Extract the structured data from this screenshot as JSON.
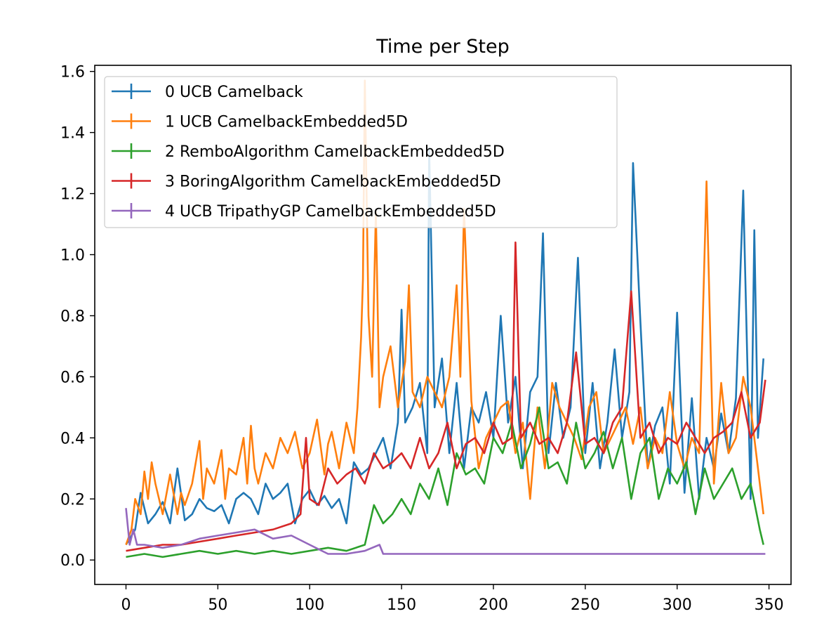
{
  "chart_data": {
    "type": "line",
    "title": "Time per Step",
    "xlabel": "",
    "ylabel": "",
    "xlim": [
      -17,
      362
    ],
    "ylim": [
      -0.08,
      1.62
    ],
    "xticks": [
      0,
      50,
      100,
      150,
      200,
      250,
      300,
      350
    ],
    "yticks": [
      0.0,
      0.2,
      0.4,
      0.6,
      0.8,
      1.0,
      1.2,
      1.4,
      1.6
    ],
    "xtick_labels": [
      "0",
      "50",
      "100",
      "150",
      "200",
      "250",
      "300",
      "350"
    ],
    "ytick_labels": [
      "0.0",
      "0.2",
      "0.4",
      "0.6",
      "0.8",
      "1.0",
      "1.2",
      "1.4",
      "1.6"
    ],
    "grid": false,
    "legend_position": "upper-left",
    "series": [
      {
        "name": "0 UCB   Camelback",
        "color": "#1f77b4",
        "x": [
          0,
          5,
          8,
          12,
          16,
          20,
          24,
          28,
          32,
          36,
          40,
          44,
          48,
          52,
          56,
          60,
          64,
          68,
          72,
          76,
          80,
          84,
          88,
          92,
          96,
          100,
          104,
          108,
          112,
          116,
          120,
          124,
          128,
          132,
          136,
          140,
          144,
          148,
          150,
          152,
          156,
          160,
          164,
          165,
          168,
          172,
          176,
          180,
          184,
          188,
          192,
          196,
          200,
          204,
          208,
          212,
          216,
          220,
          224,
          227,
          230,
          234,
          238,
          242,
          246,
          250,
          254,
          258,
          262,
          266,
          270,
          274,
          276,
          280,
          284,
          288,
          292,
          296,
          300,
          304,
          308,
          312,
          316,
          320,
          324,
          328,
          332,
          336,
          340,
          342,
          344,
          347
        ],
        "y": [
          0.05,
          0.1,
          0.22,
          0.12,
          0.15,
          0.19,
          0.12,
          0.3,
          0.13,
          0.15,
          0.2,
          0.17,
          0.16,
          0.18,
          0.12,
          0.2,
          0.22,
          0.2,
          0.15,
          0.25,
          0.2,
          0.22,
          0.25,
          0.12,
          0.2,
          0.23,
          0.18,
          0.21,
          0.17,
          0.2,
          0.12,
          0.32,
          0.28,
          0.3,
          0.35,
          0.4,
          0.3,
          0.45,
          0.82,
          0.45,
          0.5,
          0.58,
          0.35,
          1.35,
          0.5,
          0.66,
          0.35,
          0.58,
          0.3,
          0.5,
          0.45,
          0.55,
          0.4,
          0.8,
          0.45,
          0.6,
          0.3,
          0.55,
          0.6,
          1.07,
          0.35,
          0.58,
          0.4,
          0.5,
          0.99,
          0.35,
          0.58,
          0.3,
          0.45,
          0.69,
          0.4,
          0.55,
          1.3,
          0.78,
          0.3,
          0.44,
          0.5,
          0.25,
          0.81,
          0.22,
          0.53,
          0.2,
          0.4,
          0.3,
          0.48,
          0.35,
          0.53,
          1.21,
          0.2,
          1.08,
          0.4,
          0.66
        ]
      },
      {
        "name": "1 UCB   CamelbackEmbedded5D",
        "color": "#ff7f0e",
        "x": [
          0,
          3,
          5,
          8,
          10,
          12,
          14,
          16,
          20,
          24,
          28,
          30,
          32,
          36,
          40,
          42,
          44,
          48,
          52,
          54,
          56,
          60,
          64,
          66,
          68,
          70,
          72,
          76,
          80,
          84,
          88,
          92,
          96,
          100,
          104,
          108,
          110,
          112,
          116,
          120,
          124,
          126,
          128,
          129,
          130,
          132,
          134,
          136,
          138,
          140,
          144,
          148,
          152,
          154,
          156,
          160,
          164,
          168,
          172,
          176,
          180,
          182,
          184,
          188,
          192,
          196,
          200,
          204,
          208,
          212,
          216,
          220,
          224,
          228,
          232,
          236,
          240,
          244,
          248,
          252,
          256,
          260,
          264,
          268,
          272,
          276,
          280,
          284,
          288,
          292,
          296,
          300,
          304,
          308,
          312,
          316,
          320,
          324,
          328,
          332,
          336,
          340,
          344,
          347
        ],
        "y": [
          0.05,
          0.1,
          0.2,
          0.15,
          0.29,
          0.2,
          0.32,
          0.25,
          0.15,
          0.28,
          0.15,
          0.22,
          0.18,
          0.25,
          0.39,
          0.2,
          0.3,
          0.25,
          0.36,
          0.2,
          0.3,
          0.28,
          0.4,
          0.25,
          0.44,
          0.3,
          0.25,
          0.35,
          0.3,
          0.4,
          0.35,
          0.42,
          0.3,
          0.35,
          0.46,
          0.28,
          0.38,
          0.42,
          0.3,
          0.45,
          0.35,
          0.5,
          0.73,
          0.92,
          1.57,
          0.8,
          0.6,
          1.14,
          0.5,
          0.6,
          0.7,
          0.5,
          0.65,
          0.9,
          0.55,
          0.5,
          0.6,
          0.55,
          0.5,
          0.6,
          0.9,
          0.6,
          1.15,
          0.52,
          0.3,
          0.4,
          0.45,
          0.5,
          0.52,
          0.35,
          0.45,
          0.2,
          0.5,
          0.3,
          0.58,
          0.5,
          0.45,
          0.4,
          0.33,
          0.5,
          0.55,
          0.35,
          0.4,
          0.45,
          0.5,
          0.38,
          0.5,
          0.3,
          0.4,
          0.35,
          0.55,
          0.38,
          0.3,
          0.4,
          0.35,
          1.24,
          0.25,
          0.58,
          0.35,
          0.4,
          0.6,
          0.5,
          0.3,
          0.15
        ]
      },
      {
        "name": "2 RemboAlgorithm   CamelbackEmbedded5D",
        "color": "#2ca02c",
        "x": [
          0,
          10,
          20,
          30,
          40,
          50,
          60,
          70,
          80,
          90,
          100,
          110,
          120,
          130,
          135,
          140,
          145,
          150,
          155,
          160,
          165,
          170,
          175,
          180,
          185,
          190,
          195,
          200,
          205,
          210,
          215,
          220,
          225,
          230,
          235,
          240,
          245,
          250,
          255,
          260,
          265,
          270,
          275,
          280,
          285,
          290,
          295,
          300,
          305,
          310,
          315,
          320,
          325,
          330,
          335,
          340,
          345,
          347
        ],
        "y": [
          0.01,
          0.02,
          0.01,
          0.02,
          0.03,
          0.02,
          0.03,
          0.02,
          0.03,
          0.02,
          0.03,
          0.04,
          0.03,
          0.05,
          0.18,
          0.12,
          0.15,
          0.2,
          0.15,
          0.25,
          0.2,
          0.3,
          0.18,
          0.35,
          0.28,
          0.3,
          0.25,
          0.4,
          0.35,
          0.45,
          0.3,
          0.38,
          0.5,
          0.3,
          0.32,
          0.25,
          0.45,
          0.3,
          0.35,
          0.42,
          0.3,
          0.4,
          0.2,
          0.35,
          0.4,
          0.2,
          0.3,
          0.25,
          0.32,
          0.15,
          0.3,
          0.2,
          0.25,
          0.3,
          0.2,
          0.25,
          0.1,
          0.05
        ]
      },
      {
        "name": "3 BoringAlgorithm   CamelbackEmbedded5D",
        "color": "#d62728",
        "x": [
          0,
          10,
          20,
          30,
          40,
          50,
          60,
          70,
          80,
          90,
          95,
          98,
          100,
          105,
          110,
          115,
          120,
          125,
          130,
          135,
          140,
          145,
          150,
          155,
          160,
          165,
          170,
          175,
          180,
          185,
          190,
          195,
          200,
          205,
          210,
          212,
          215,
          220,
          225,
          230,
          235,
          240,
          245,
          250,
          255,
          260,
          265,
          270,
          275,
          280,
          285,
          290,
          295,
          300,
          305,
          310,
          315,
          320,
          325,
          330,
          335,
          340,
          345,
          348
        ],
        "y": [
          0.03,
          0.04,
          0.05,
          0.05,
          0.06,
          0.07,
          0.08,
          0.09,
          0.1,
          0.12,
          0.15,
          0.4,
          0.2,
          0.18,
          0.3,
          0.25,
          0.28,
          0.3,
          0.25,
          0.35,
          0.3,
          0.32,
          0.35,
          0.3,
          0.4,
          0.3,
          0.35,
          0.45,
          0.3,
          0.38,
          0.4,
          0.35,
          0.45,
          0.38,
          0.4,
          1.04,
          0.4,
          0.45,
          0.38,
          0.4,
          0.35,
          0.45,
          0.68,
          0.38,
          0.4,
          0.35,
          0.45,
          0.5,
          0.88,
          0.4,
          0.45,
          0.35,
          0.4,
          0.38,
          0.45,
          0.4,
          0.35,
          0.4,
          0.42,
          0.45,
          0.55,
          0.4,
          0.45,
          0.59
        ]
      },
      {
        "name": "4 UCB TripathyGP CamelbackEmbedded5D",
        "color": "#9467bd",
        "x": [
          0,
          2,
          4,
          6,
          10,
          20,
          30,
          40,
          50,
          60,
          70,
          80,
          90,
          100,
          110,
          120,
          130,
          138,
          140,
          150,
          200,
          250,
          300,
          348
        ],
        "y": [
          0.17,
          0.05,
          0.1,
          0.05,
          0.05,
          0.04,
          0.05,
          0.07,
          0.08,
          0.09,
          0.1,
          0.07,
          0.08,
          0.05,
          0.02,
          0.02,
          0.03,
          0.05,
          0.02,
          0.02,
          0.02,
          0.02,
          0.02,
          0.02
        ]
      }
    ]
  }
}
